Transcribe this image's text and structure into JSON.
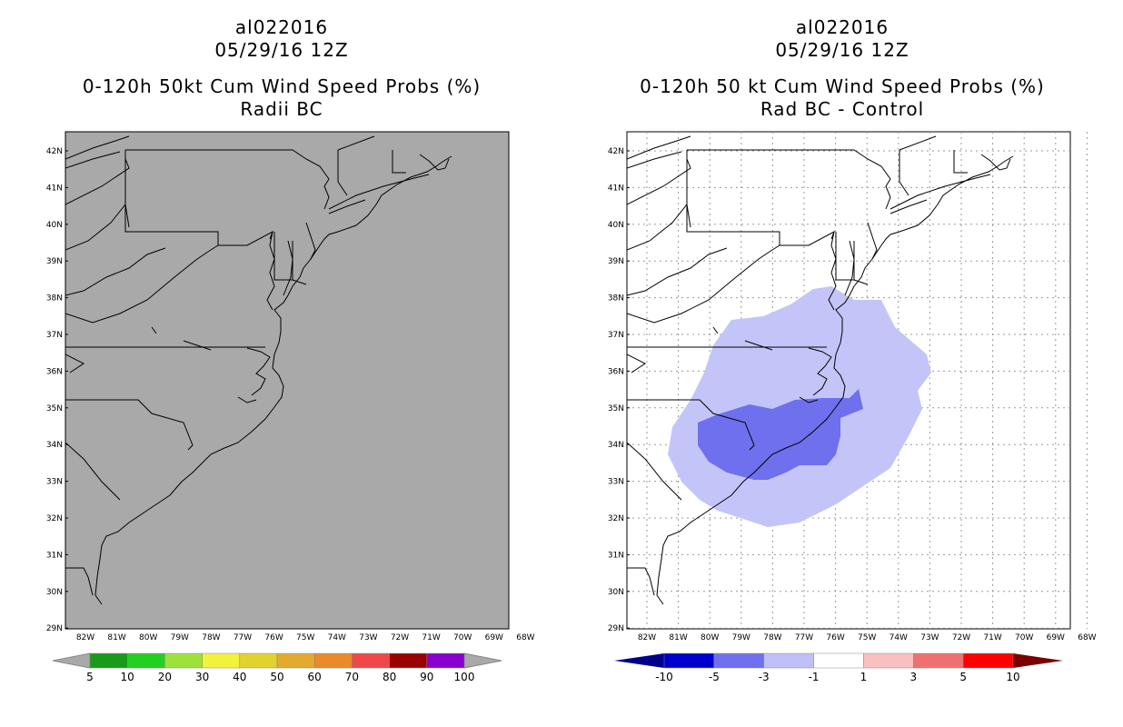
{
  "panels": [
    {
      "storm_id": "al022016",
      "datetime": "05/29/16 12Z",
      "title": "0-120h 50kt Cum Wind Speed Probs (%)",
      "subtitle": "Radii BC",
      "lat_labels": [
        "42N",
        "41N",
        "40N",
        "39N",
        "38N",
        "37N",
        "36N",
        "35N",
        "34N",
        "33N",
        "32N",
        "31N",
        "30N",
        "29N"
      ],
      "lon_labels": [
        "82W",
        "81W",
        "80W",
        "79W",
        "78W",
        "77W",
        "76W",
        "75W",
        "74W",
        "73W",
        "72W",
        "71W",
        "70W",
        "69W",
        "68W"
      ],
      "colorbar": {
        "labels": [
          "5",
          "10",
          "20",
          "30",
          "40",
          "50",
          "60",
          "70",
          "80",
          "90",
          "100"
        ],
        "colors": [
          "#1a9a1a",
          "#22d022",
          "#9de23a",
          "#f2f23a",
          "#e2d22e",
          "#e2aa2e",
          "#ea8a2a",
          "#f04848",
          "#990000",
          "#8800cc"
        ]
      }
    },
    {
      "storm_id": "al022016",
      "datetime": "05/29/16 12Z",
      "title": "0-120h 50 kt Cum Wind Speed Probs (%)",
      "subtitle": "Rad BC - Control",
      "lat_labels": [
        "42N",
        "41N",
        "40N",
        "39N",
        "38N",
        "37N",
        "36N",
        "35N",
        "34N",
        "33N",
        "32N",
        "31N",
        "30N",
        "29N"
      ],
      "lon_labels": [
        "82W",
        "81W",
        "80W",
        "79W",
        "78W",
        "77W",
        "76W",
        "75W",
        "74W",
        "73W",
        "72W",
        "71W",
        "70W",
        "69W",
        "68W"
      ],
      "colorbar": {
        "labels": [
          "-10",
          "-5",
          "-3",
          "-1",
          "1",
          "3",
          "5",
          "10"
        ],
        "colors": [
          "#0000cc",
          "#7070ee",
          "#c0c0f8",
          "#ffffff",
          "#f8c0c0",
          "#f07070",
          "#ff0000"
        ]
      }
    }
  ]
}
